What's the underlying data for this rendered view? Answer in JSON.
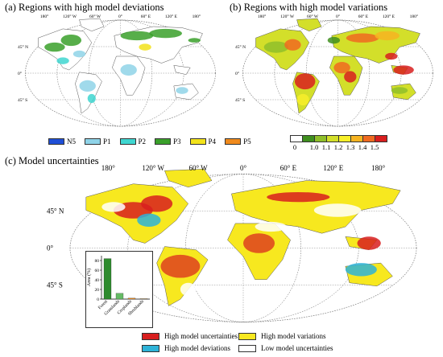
{
  "panels": {
    "a": {
      "title": "(a) Regions with high model deviations"
    },
    "b": {
      "title": "(b) Regions with high model variations"
    },
    "c": {
      "title": "(c) Model uncertainties"
    }
  },
  "small_map_labels": {
    "lon": [
      "180°",
      "120° W",
      "60° W",
      "0°",
      "60° E",
      "120° E",
      "180°"
    ],
    "lat": [
      "45° N",
      "0°",
      "45° S"
    ]
  },
  "large_map_labels": {
    "lon": [
      "180°",
      "120° W",
      "60° W",
      "0°",
      "60° E",
      "120° E",
      "180°"
    ],
    "lat": [
      "45° N",
      "0°",
      "45° S"
    ]
  },
  "legend_a": [
    {
      "label": "N5",
      "color": "#1f4fd6"
    },
    {
      "label": "P1",
      "color": "#8fd3e8"
    },
    {
      "label": "P2",
      "color": "#3fd6d0"
    },
    {
      "label": "P3",
      "color": "#3aa02a"
    },
    {
      "label": "P4",
      "color": "#f2e21a"
    },
    {
      "label": "P5",
      "color": "#f08a1c"
    }
  ],
  "legend_b": {
    "colors": [
      "#ffffff",
      "#3f8f1f",
      "#8fbf2a",
      "#d3df2a",
      "#f7ef2a",
      "#f7b421",
      "#f06a20",
      "#d81e1e"
    ],
    "ticks": [
      "0",
      "1.0",
      "1.1",
      "1.2",
      "1.3",
      "1.4",
      "1.5"
    ]
  },
  "legend_c": [
    {
      "label": "High model uncertainties",
      "color": "#d81e1e"
    },
    {
      "label": "High model variations",
      "color": "#f7e81f"
    },
    {
      "label": "High model deviations",
      "color": "#2db3d8"
    },
    {
      "label": "Low model uncertainties",
      "color": "#ffffff"
    }
  ],
  "chart_data": {
    "type": "bar",
    "categories": [
      "Forest",
      "Grasslands",
      "Croplands",
      "Shrublands"
    ],
    "values": [
      84,
      12,
      2,
      1
    ],
    "colors": [
      "#2e8b2e",
      "#66bb66",
      "#f08a1c",
      "#c8a060"
    ],
    "title": "",
    "xlabel": "",
    "ylabel": "Area (%)",
    "ylim": [
      0,
      90
    ],
    "yticks": [
      0,
      20,
      40,
      60,
      80
    ]
  }
}
